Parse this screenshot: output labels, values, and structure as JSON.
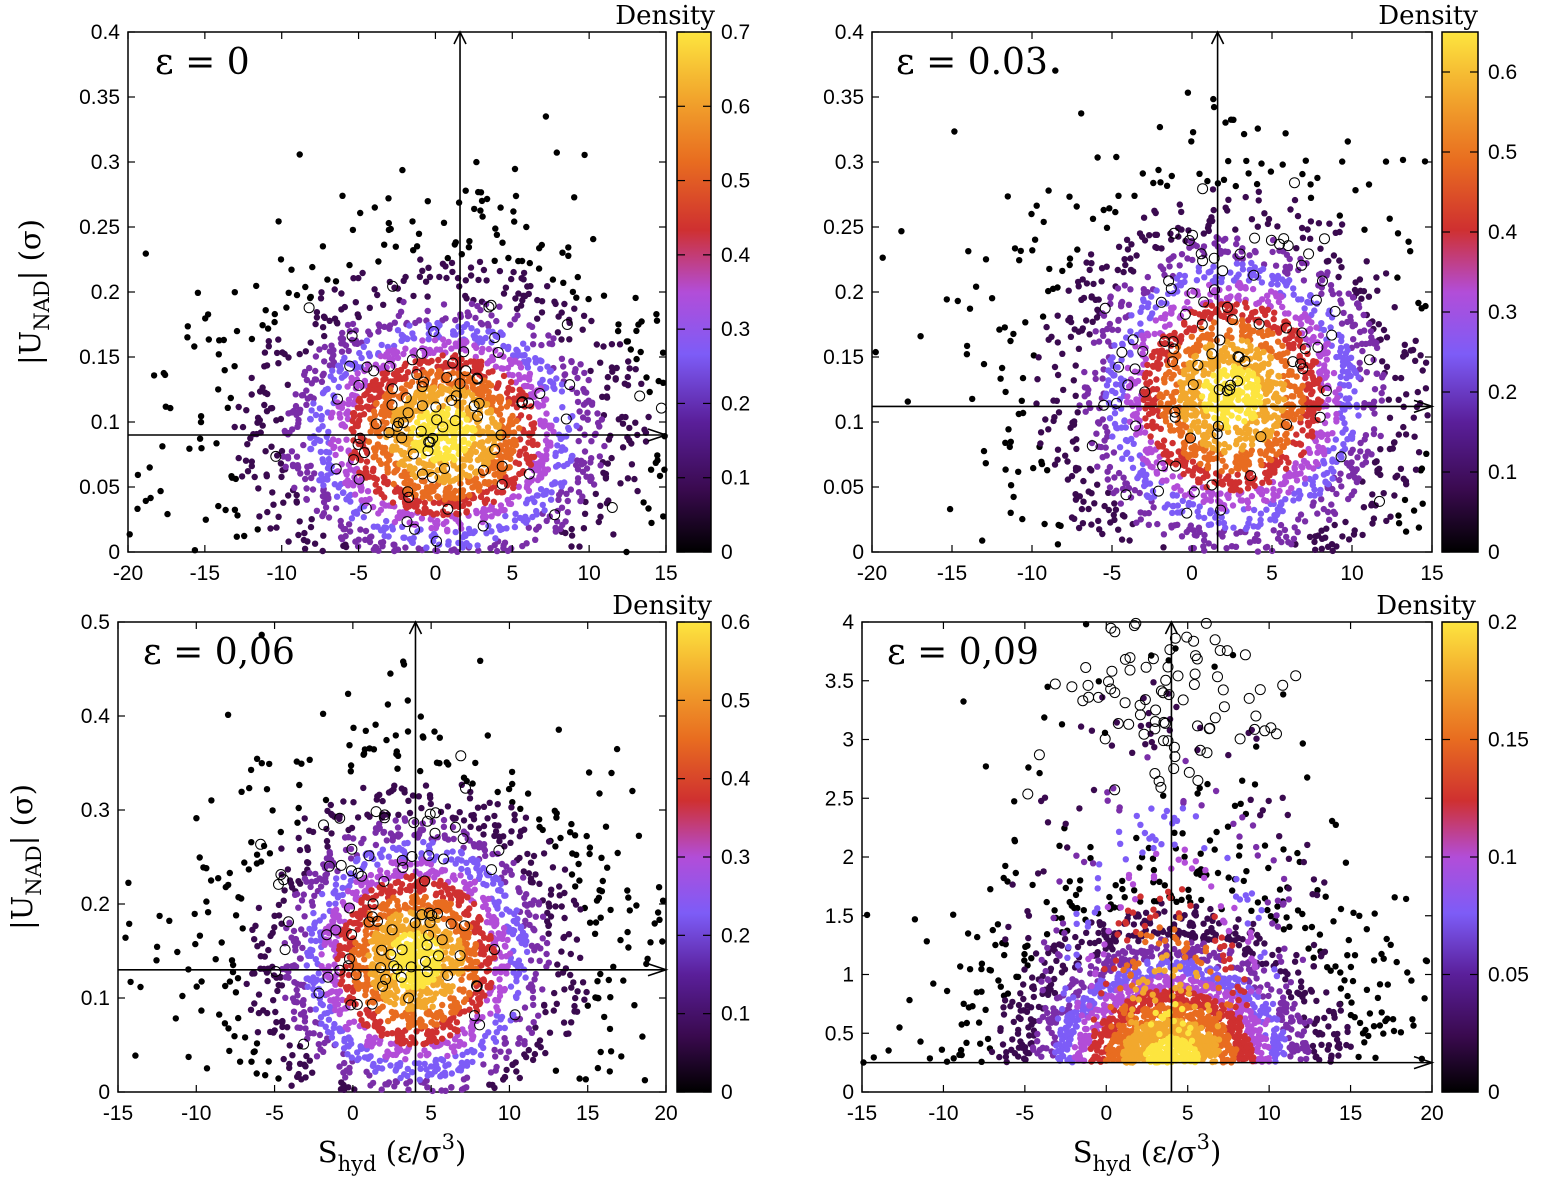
{
  "figure": {
    "colorbar_title": "Density",
    "xlabel": {
      "main": "S",
      "sub": "hyd",
      "unit_open": " (ε/σ",
      "sup": "3",
      "unit_close": ")"
    },
    "ylabel": {
      "main": "|U",
      "sub": "NAD",
      "rest": "| (σ)"
    }
  },
  "palette": [
    "#000000",
    "#3a0a4f",
    "#7a2ea8",
    "#7d5cf7",
    "#b24dd8",
    "#cf3030",
    "#e86c20",
    "#f2a82d",
    "#fde53f"
  ],
  "chart_data": [
    {
      "type": "scatter",
      "panel_label": "ε = 0",
      "xlim": [
        -20,
        15
      ],
      "ylim": [
        0,
        0.4
      ],
      "xticks": [
        -20,
        -15,
        -10,
        -5,
        0,
        5,
        10,
        15
      ],
      "xtick_labels": [
        "-20",
        "-15",
        "-10",
        "-5",
        "0",
        "5",
        "10",
        "15"
      ],
      "yticks": [
        0,
        0.05,
        0.1,
        0.15,
        0.2,
        0.25,
        0.3,
        0.35,
        0.4
      ],
      "ytick_labels": [
        "0",
        "0.05",
        "0.1",
        "0.15",
        "0.2",
        "0.25",
        "0.3",
        "0.35",
        "0.4"
      ],
      "colorbar": {
        "range": [
          0,
          0.7
        ],
        "ticks": [
          0,
          0.1,
          0.2,
          0.3,
          0.4,
          0.5,
          0.6,
          0.7
        ],
        "tick_labels": [
          "0",
          "0.1",
          "0.2",
          "0.3",
          "0.4",
          "0.5",
          "0.6",
          "0.7"
        ]
      },
      "reference_lines": {
        "x": 1.6,
        "y": 0.09
      },
      "cloud": {
        "center": [
          0.5,
          0.09
        ],
        "spread": [
          5.5,
          0.055
        ],
        "peak_density": 0.7
      },
      "circles": {
        "center": [
          0,
          0.095
        ],
        "spread": [
          4.5,
          0.045
        ]
      },
      "grid": false
    },
    {
      "type": "scatter",
      "panel_label": "ε = 0.03",
      "xlim": [
        -20,
        15
      ],
      "ylim": [
        0,
        0.4
      ],
      "xticks": [
        -20,
        -15,
        -10,
        -5,
        0,
        5,
        10,
        15
      ],
      "xtick_labels": [
        "-20",
        "-15",
        "-10",
        "-5",
        "0",
        "5",
        "10",
        "15"
      ],
      "yticks": [
        0,
        0.05,
        0.1,
        0.15,
        0.2,
        0.25,
        0.3,
        0.35,
        0.4
      ],
      "ytick_labels": [
        "0",
        "0.05",
        "0.1",
        "0.15",
        "0.2",
        "0.25",
        "0.3",
        "0.35",
        "0.4"
      ],
      "colorbar": {
        "range": [
          0,
          0.65
        ],
        "ticks": [
          0,
          0.1,
          0.2,
          0.3,
          0.4,
          0.5,
          0.6
        ],
        "tick_labels": [
          "0",
          "0.1",
          "0.2",
          "0.3",
          "0.4",
          "0.5",
          "0.6"
        ]
      },
      "reference_lines": {
        "x": 1.6,
        "y": 0.112
      },
      "cloud": {
        "center": [
          2.5,
          0.12
        ],
        "spread": [
          5.0,
          0.065
        ],
        "peak_density": 0.65
      },
      "circles": {
        "center": [
          1.5,
          0.15
        ],
        "spread": [
          4.0,
          0.065
        ]
      },
      "grid": false
    },
    {
      "type": "scatter",
      "panel_label": "ε = 0,06",
      "xlim": [
        -15,
        20
      ],
      "ylim": [
        0,
        0.5
      ],
      "xticks": [
        -15,
        -10,
        -5,
        0,
        5,
        10,
        15,
        20
      ],
      "xtick_labels": [
        "-15",
        "-10",
        "-5",
        "0",
        "5",
        "10",
        "15",
        "20"
      ],
      "yticks": [
        0,
        0.1,
        0.2,
        0.3,
        0.4,
        0.5
      ],
      "ytick_labels": [
        "0",
        "0.1",
        "0.2",
        "0.3",
        "0.4",
        "0.5"
      ],
      "colorbar": {
        "range": [
          0,
          0.6
        ],
        "ticks": [
          0,
          0.1,
          0.2,
          0.3,
          0.4,
          0.5,
          0.6
        ],
        "tick_labels": [
          "0",
          "0.1",
          "0.2",
          "0.3",
          "0.4",
          "0.5",
          "0.6"
        ]
      },
      "reference_lines": {
        "x": 4.0,
        "y": 0.13
      },
      "cloud": {
        "center": [
          4.0,
          0.14
        ],
        "spread": [
          4.5,
          0.08
        ],
        "peak_density": 0.6
      },
      "circles": {
        "center": [
          3.0,
          0.18
        ],
        "spread": [
          3.5,
          0.08
        ]
      },
      "grid": false
    },
    {
      "type": "scatter",
      "panel_label": "ε = 0,09",
      "xlim": [
        -15,
        20
      ],
      "ylim": [
        0,
        4
      ],
      "xticks": [
        -15,
        -10,
        -5,
        0,
        5,
        10,
        15,
        20
      ],
      "xtick_labels": [
        "-15",
        "-10",
        "-5",
        "0",
        "5",
        "10",
        "15",
        "20"
      ],
      "yticks": [
        0,
        0.5,
        1,
        1.5,
        2,
        2.5,
        3,
        3.5,
        4
      ],
      "ytick_labels": [
        "0",
        "0.5",
        "1",
        "1.5",
        "2",
        "2.5",
        "3",
        "3.5",
        "4"
      ],
      "colorbar": {
        "range": [
          0,
          0.2
        ],
        "ticks": [
          0,
          0.05,
          0.1,
          0.15,
          0.2
        ],
        "tick_labels": [
          "0",
          "0.05",
          "0.1",
          "0.15",
          "0.2"
        ]
      },
      "reference_lines": {
        "x": 4.0,
        "y": 0.25
      },
      "cloud": {
        "center": [
          4.0,
          0.25
        ],
        "spread": [
          4.5,
          0.55
        ],
        "peak_density": 0.2
      },
      "circles": {
        "center": [
          3.5,
          3.35
        ],
        "spread": [
          3.5,
          0.45
        ]
      },
      "grid": false
    }
  ]
}
